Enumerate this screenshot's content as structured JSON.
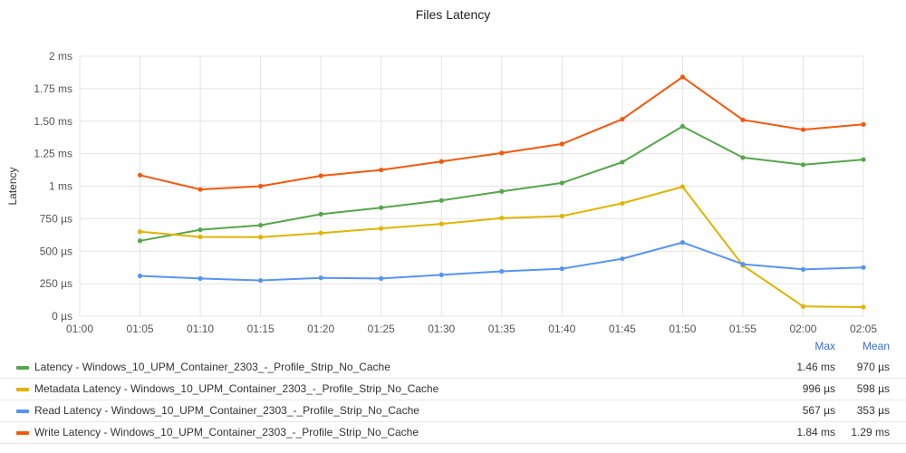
{
  "chart_data": {
    "type": "line",
    "title": "Files Latency",
    "xlabel": "",
    "ylabel": "Latency",
    "x": [
      "01:05",
      "01:10",
      "01:15",
      "01:20",
      "01:25",
      "01:30",
      "01:35",
      "01:40",
      "01:45",
      "01:50",
      "01:55",
      "02:00",
      "02:05"
    ],
    "x_ticks": [
      "01:00",
      "01:05",
      "01:10",
      "01:15",
      "01:20",
      "01:25",
      "01:30",
      "01:35",
      "01:40",
      "01:45",
      "01:50",
      "01:55",
      "02:00",
      "02:05"
    ],
    "y_ticks": [
      {
        "value": 0,
        "label": "0 µs"
      },
      {
        "value": 250,
        "label": "250 µs"
      },
      {
        "value": 500,
        "label": "500 µs"
      },
      {
        "value": 750,
        "label": "750 µs"
      },
      {
        "value": 1000,
        "label": "1 ms"
      },
      {
        "value": 1250,
        "label": "1.25 ms"
      },
      {
        "value": 1500,
        "label": "1.50 ms"
      },
      {
        "value": 1750,
        "label": "1.75 ms"
      },
      {
        "value": 2000,
        "label": "2 ms"
      }
    ],
    "ylim": [
      0,
      2000
    ],
    "y_unit": "µs",
    "grid": true,
    "legend_position": "bottom",
    "legend_columns": [
      "Max",
      "Mean"
    ],
    "series": [
      {
        "name": "Latency - Windows_10_UPM_Container_2303_-_Profile_Strip_No_Cache",
        "color": "#56a64b",
        "values": [
          580,
          665,
          700,
          785,
          835,
          890,
          960,
          1025,
          1185,
          1460,
          1220,
          1165,
          1205
        ],
        "max": "1.46 ms",
        "mean": "970 µs"
      },
      {
        "name": "Metadata Latency - Windows_10_UPM_Container_2303_-_Profile_Strip_No_Cache",
        "color": "#e0b400",
        "values": [
          650,
          610,
          608,
          640,
          675,
          710,
          755,
          770,
          868,
          996,
          390,
          75,
          70
        ],
        "max": "996 µs",
        "mean": "598 µs"
      },
      {
        "name": "Read Latency - Windows_10_UPM_Container_2303_-_Profile_Strip_No_Cache",
        "color": "#5794f2",
        "values": [
          310,
          290,
          275,
          295,
          290,
          318,
          345,
          365,
          442,
          567,
          400,
          360,
          375
        ],
        "max": "567 µs",
        "mean": "353 µs"
      },
      {
        "name": "Write Latency - Windows_10_UPM_Container_2303_-_Profile_Strip_No_Cache",
        "color": "#f2590f",
        "values": [
          1085,
          975,
          1000,
          1080,
          1125,
          1190,
          1255,
          1325,
          1515,
          1840,
          1510,
          1435,
          1475
        ],
        "max": "1.84 ms",
        "mean": "1.29 ms"
      }
    ]
  }
}
